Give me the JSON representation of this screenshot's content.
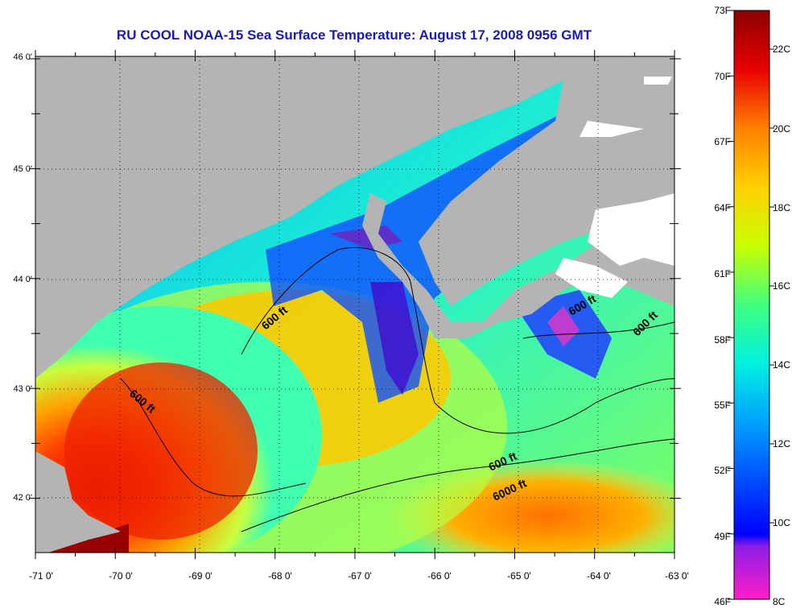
{
  "title": "RU COOL  NOAA-15  Sea Surface Temperature:  August 17, 2008 0956 GMT",
  "lat_labels": [
    "46 0'",
    "45 0'",
    "44 0'",
    "43 0'",
    "42 0'"
  ],
  "lon_labels": [
    "-71 0'",
    "-70 0'",
    "-69 0'",
    "-68 0'",
    "-67 0'",
    "-66 0'",
    "-65 0'",
    "-64 0'",
    "-63 0'"
  ],
  "scale_f": [
    "73F",
    "70F",
    "67F",
    "64F",
    "61F",
    "58F",
    "55F",
    "52F",
    "49F",
    "46F"
  ],
  "scale_c": [
    "22C",
    "20C",
    "18C",
    "16C",
    "14C",
    "12C",
    "10C",
    "8C"
  ],
  "contour_labels": [
    "600 ft",
    "600 ft",
    "600 ft",
    "600 ft",
    "600 ft",
    "6000 ft"
  ],
  "colors": {
    "land": "#b4b4b4",
    "cloud": "#ffffff",
    "title": "#1a1ab4"
  }
}
